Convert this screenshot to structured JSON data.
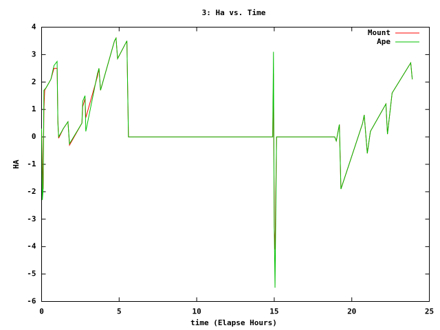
{
  "chart_data": {
    "type": "line",
    "title": "3: Ha vs. Time",
    "xlabel": "time (Elapse Hours)",
    "ylabel": "HA",
    "xlim": [
      0,
      25
    ],
    "xticks": [
      0,
      5,
      10,
      15,
      20,
      25
    ],
    "ylim": [
      -6,
      4
    ],
    "yticks": [
      -6,
      -5,
      -4,
      -3,
      -2,
      -1,
      0,
      1,
      2,
      3,
      4
    ],
    "grid": false,
    "legend": "top-right",
    "series": [
      {
        "name": "Mount",
        "color": "#ff0000",
        "x": [
          0.0,
          0.05,
          0.1,
          0.15,
          0.2,
          0.6,
          0.8,
          1.0,
          1.05,
          1.1,
          1.4,
          1.7,
          1.8,
          2.6,
          2.65,
          2.8,
          2.85,
          3.6,
          3.7,
          3.8,
          4.7,
          4.8,
          4.9,
          5.5,
          5.6,
          14.9,
          14.95,
          15.0,
          15.05,
          15.15,
          18.9,
          19.0,
          19.2,
          19.3,
          20.7,
          20.8,
          21.0,
          21.2,
          22.2,
          22.3,
          22.6,
          23.8,
          23.9
        ],
        "values": [
          0.3,
          -1.0,
          -1.9,
          1.0,
          1.7,
          2.1,
          2.5,
          2.5,
          0.6,
          -0.05,
          0.3,
          0.55,
          -0.3,
          0.5,
          1.1,
          1.4,
          0.7,
          2.2,
          2.5,
          1.7,
          3.5,
          3.6,
          2.85,
          3.5,
          0.0,
          0.0,
          2.3,
          -3.3,
          -4.1,
          0.0,
          0.0,
          -0.15,
          0.45,
          -1.9,
          0.5,
          0.8,
          -0.6,
          0.2,
          1.2,
          0.1,
          1.6,
          2.7,
          2.1
        ]
      },
      {
        "name": "Ape",
        "color": "#00c000",
        "x": [
          0.0,
          0.05,
          0.1,
          0.15,
          0.3,
          0.6,
          0.8,
          1.0,
          1.05,
          1.1,
          1.4,
          1.7,
          1.8,
          2.6,
          2.65,
          2.8,
          2.85,
          3.6,
          3.7,
          3.8,
          4.7,
          4.8,
          4.9,
          5.5,
          5.6,
          14.9,
          14.95,
          15.0,
          15.05,
          15.15,
          18.9,
          19.0,
          19.2,
          19.3,
          20.7,
          20.8,
          21.0,
          21.2,
          22.2,
          22.3,
          22.6,
          23.8,
          23.9
        ],
        "values": [
          0.3,
          -2.3,
          -1.9,
          1.7,
          1.8,
          2.1,
          2.6,
          2.75,
          0.5,
          0.0,
          0.3,
          0.55,
          -0.25,
          0.5,
          1.3,
          1.5,
          0.2,
          2.3,
          2.5,
          1.7,
          3.5,
          3.6,
          2.85,
          3.5,
          0.0,
          0.0,
          3.1,
          -3.3,
          -5.5,
          0.0,
          0.0,
          -0.15,
          0.45,
          -1.9,
          0.5,
          0.8,
          -0.6,
          0.2,
          1.2,
          0.1,
          1.6,
          2.7,
          2.1
        ]
      }
    ]
  }
}
